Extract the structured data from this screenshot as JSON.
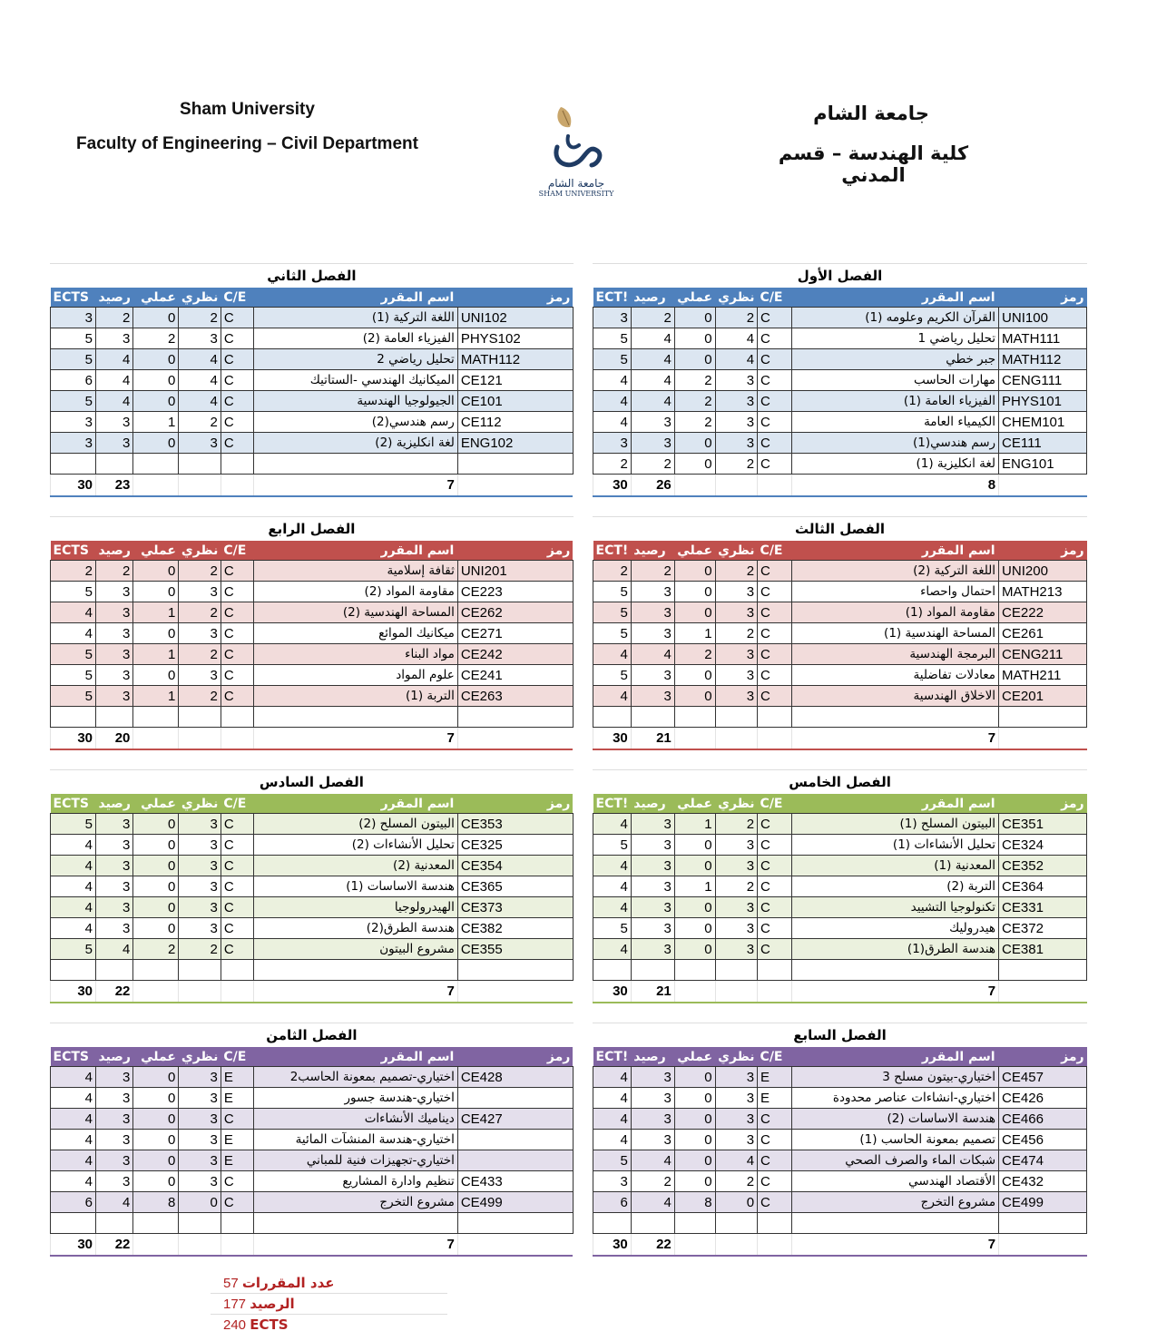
{
  "header": {
    "en_line1": "Sham University",
    "en_line2": "Faculty of Engineering – Civil Department",
    "ar_line1": "جامعة الشام",
    "ar_line2": "كلية الهندسة – قسم المدني",
    "logo_text": "شام",
    "logo_caption_ar": "جامعة الشام",
    "logo_caption_en": "SHAM UNIVERSITY"
  },
  "columns": {
    "code": "رمز",
    "name": "اسم المقرر",
    "ce": "C/E",
    "theory": "نظري",
    "practical": "عملي",
    "credit": "رصيد",
    "ects_left": "ECTS",
    "ects_right": "ECT!"
  },
  "colors": {
    "blue": {
      "head": "#4f81bd",
      "light": "#dce6f1"
    },
    "red": {
      "head": "#c0504d",
      "light": "#f2dcdb"
    },
    "green": {
      "head": "#9bbb59",
      "light": "#ebf1de"
    },
    "purple": {
      "head": "#8064a2",
      "light": "#e4dfec"
    }
  },
  "semesters": [
    {
      "title": "الفصل الأول",
      "side": "right",
      "color": "blue",
      "total_ects": 30,
      "total_credit": 26,
      "count": 8,
      "rows": [
        [
          "UNI100",
          "القرآن الكريم وعلومه (1)",
          "C",
          2,
          0,
          2,
          3
        ],
        [
          "MATH111",
          "تحليل رياضي 1",
          "C",
          4,
          0,
          4,
          5
        ],
        [
          "MATH112",
          "جبر خطي",
          "C",
          4,
          0,
          4,
          5
        ],
        [
          "CENG111",
          "مهارات الحاسب",
          "C",
          3,
          2,
          4,
          4
        ],
        [
          "PHYS101",
          "الفيزياء العامة (1)",
          "C",
          3,
          2,
          4,
          4
        ],
        [
          "CHEM101",
          "الكيمياء العامة",
          "C",
          3,
          2,
          3,
          4
        ],
        [
          "CE111",
          "رسم هندسي(1)",
          "C",
          3,
          0,
          3,
          3
        ],
        [
          "ENG101",
          "لغة انكليزية (1)",
          "C",
          2,
          0,
          2,
          2
        ]
      ]
    },
    {
      "title": "الفصل الثاني",
      "side": "left",
      "color": "blue",
      "total_ects": 30,
      "total_credit": 23,
      "count": 7,
      "rows": [
        [
          "UNI102",
          "اللغة التركية (1)",
          "C",
          2,
          0,
          2,
          3
        ],
        [
          "PHYS102",
          "الفيزياء العامة (2)",
          "C",
          3,
          2,
          3,
          5
        ],
        [
          "MATH112",
          "تحليل رياضي 2",
          "C",
          4,
          0,
          4,
          5
        ],
        [
          "CE121",
          "الميكانيك الهندسي -الستاتيك",
          "C",
          4,
          0,
          4,
          6
        ],
        [
          "CE101",
          "الجيولوجيا الهندسية",
          "C",
          4,
          0,
          4,
          5
        ],
        [
          "CE112",
          "رسم هندسي(2)",
          "C",
          2,
          1,
          3,
          3
        ],
        [
          "ENG102",
          "لغة انكليزية (2)",
          "C",
          3,
          0,
          3,
          3
        ]
      ]
    },
    {
      "title": "الفصل الثالث",
      "side": "right",
      "color": "red",
      "total_ects": 30,
      "total_credit": 21,
      "count": 7,
      "rows": [
        [
          "UNI200",
          "اللغة التركية (2)",
          "C",
          2,
          0,
          2,
          2
        ],
        [
          "MATH213",
          "احتمال واحصاء",
          "C",
          3,
          0,
          3,
          5
        ],
        [
          "CE222",
          "مقاومة المواد (1)",
          "C",
          3,
          0,
          3,
          5
        ],
        [
          "CE261",
          "المساحة الهندسية (1)",
          "C",
          2,
          1,
          3,
          5
        ],
        [
          "CENG211",
          "البرمجة الهندسية",
          "C",
          3,
          2,
          4,
          4
        ],
        [
          "MATH211",
          "معادلات تفاضلية",
          "C",
          3,
          0,
          3,
          5
        ],
        [
          "CE201",
          "الاخلاق الهندسية",
          "C",
          3,
          0,
          3,
          4
        ]
      ]
    },
    {
      "title": "الفصل الرابع",
      "side": "left",
      "color": "red",
      "total_ects": 30,
      "total_credit": 20,
      "count": 7,
      "rows": [
        [
          "UNI201",
          "ثقافة إسلامية",
          "C",
          2,
          0,
          2,
          2
        ],
        [
          "CE223",
          "مقاومة المواد (2)",
          "C",
          3,
          0,
          3,
          5
        ],
        [
          "CE262",
          "المساحة الهندسية (2)",
          "C",
          2,
          1,
          3,
          4
        ],
        [
          "CE271",
          "ميكانيك الموائع",
          "C",
          3,
          0,
          3,
          4
        ],
        [
          "CE242",
          "مواد البناء",
          "C",
          2,
          1,
          3,
          5
        ],
        [
          "CE241",
          "علوم المواد",
          "C",
          3,
          0,
          3,
          5
        ],
        [
          "CE263",
          "التربة (1)",
          "C",
          2,
          1,
          3,
          5
        ]
      ]
    },
    {
      "title": "الفصل الخامس",
      "side": "right",
      "color": "green",
      "total_ects": 30,
      "total_credit": 21,
      "count": 7,
      "rows": [
        [
          "CE351",
          "البيتون المسلح (1)",
          "C",
          2,
          1,
          3,
          4
        ],
        [
          "CE324",
          "تحليل الأنشاءات (1)",
          "C",
          3,
          0,
          3,
          5
        ],
        [
          "CE352",
          "المعدنية (1)",
          "C",
          3,
          0,
          3,
          4
        ],
        [
          "CE364",
          "التربة (2)",
          "C",
          2,
          1,
          3,
          4
        ],
        [
          "CE331",
          "تكنولوجيا التشييد",
          "C",
          3,
          0,
          3,
          4
        ],
        [
          "CE372",
          "هيدروليك",
          "C",
          3,
          0,
          3,
          5
        ],
        [
          "CE381",
          "هندسة الطرق(1)",
          "C",
          3,
          0,
          3,
          4
        ]
      ]
    },
    {
      "title": "الفصل السادس",
      "side": "left",
      "color": "green",
      "total_ects": 30,
      "total_credit": 22,
      "count": 7,
      "rows": [
        [
          "CE353",
          "البيتون المسلح (2)",
          "C",
          3,
          0,
          3,
          5
        ],
        [
          "CE325",
          "تحليل الأنشاءات (2)",
          "C",
          3,
          0,
          3,
          4
        ],
        [
          "CE354",
          "المعدنية (2)",
          "C",
          3,
          0,
          3,
          4
        ],
        [
          "CE365",
          "هندسة الاساسات (1)",
          "C",
          3,
          0,
          3,
          4
        ],
        [
          "CE373",
          "الهيدرولوجيا",
          "C",
          3,
          0,
          3,
          4
        ],
        [
          "CE382",
          "هندسة الطرق(2)",
          "C",
          3,
          0,
          3,
          4
        ],
        [
          "CE355",
          "مشروع البيتون",
          "C",
          2,
          2,
          4,
          5
        ]
      ]
    },
    {
      "title": "الفصل السابع",
      "side": "right",
      "color": "purple",
      "total_ects": 30,
      "total_credit": 22,
      "count": 7,
      "rows": [
        [
          "CE457",
          "اختياري-بيتون مسلح 3",
          "E",
          3,
          0,
          3,
          4
        ],
        [
          "CE426",
          "اختياري-انشاءات عناصر محدودة",
          "E",
          3,
          0,
          3,
          4
        ],
        [
          "CE466",
          "هندسة الاساسات (2)",
          "C",
          3,
          0,
          3,
          4
        ],
        [
          "CE456",
          "تصميم بمعونة الحاسب (1)",
          "C",
          3,
          0,
          3,
          4
        ],
        [
          "CE474",
          "شبكات الماء والصرف الصحي",
          "C",
          4,
          0,
          4,
          5
        ],
        [
          "CE432",
          "الأقتصاد الهندسي",
          "C",
          2,
          0,
          2,
          3
        ],
        [
          "CE499",
          "مشروع التخرج",
          "C",
          0,
          8,
          4,
          6
        ]
      ]
    },
    {
      "title": "الفصل الثامن",
      "side": "left",
      "color": "purple",
      "total_ects": 30,
      "total_credit": 22,
      "count": 7,
      "rows": [
        [
          "CE428",
          "اختياري-تصميم بمعونة الحاسب2",
          "E",
          3,
          0,
          3,
          4
        ],
        [
          "",
          "اختياري-هندسة جسور",
          "E",
          3,
          0,
          3,
          4
        ],
        [
          "CE427",
          "ديناميك الأنشاءات",
          "C",
          3,
          0,
          3,
          4
        ],
        [
          "",
          "اختياري-هندسة المنشآت المائية",
          "E",
          3,
          0,
          3,
          4
        ],
        [
          "",
          "اختياري-تجهيزات فنية للمباني",
          "E",
          3,
          0,
          3,
          4
        ],
        [
          "CE433",
          "تنظيم وادارة المشاريع",
          "C",
          3,
          0,
          3,
          4
        ],
        [
          "CE499",
          "مشروع التخرج",
          "C",
          0,
          8,
          4,
          6
        ]
      ]
    }
  ],
  "summary": [
    {
      "value": "57",
      "label": "عدد المقررات"
    },
    {
      "value": "177",
      "label": "الرصيد"
    },
    {
      "value": "240",
      "label": "ECTS"
    }
  ]
}
